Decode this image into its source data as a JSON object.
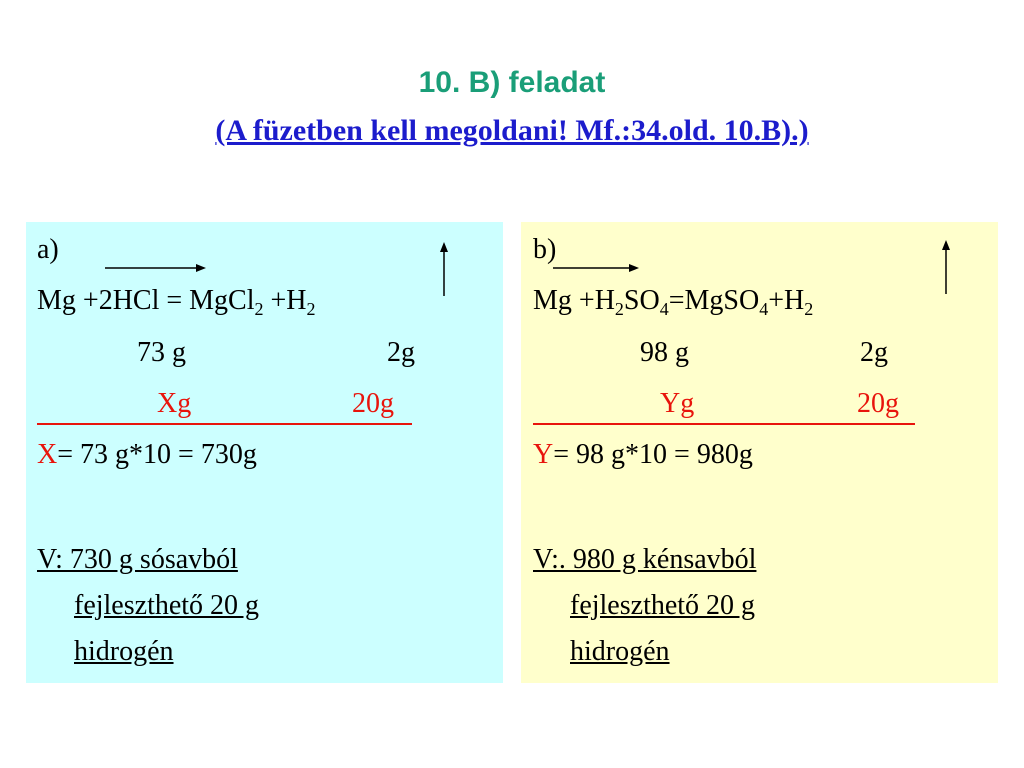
{
  "header": {
    "title": "10. B) feladat",
    "subtitle": "(A füzetben kell megoldani! Mf.:34.old. 10.B).)"
  },
  "panels": [
    {
      "label": "a)",
      "equation": [
        {
          "text": "Mg +2HCl = MgCl"
        },
        {
          "sub": "2"
        },
        {
          "text": " +H"
        },
        {
          "sub": "2"
        }
      ],
      "ratio": [
        "73 g",
        "2g"
      ],
      "unknown": [
        "Xg",
        "20g"
      ],
      "result": {
        "var": "X",
        "text": "= 73 g*10 = 730g"
      },
      "answer": [
        "V: 730 g sósavból",
        "fejleszthető 20 g",
        "hidrogén"
      ]
    },
    {
      "label": "b)",
      "equation": [
        {
          "text": "Mg +H"
        },
        {
          "sub": "2"
        },
        {
          "text": "SO"
        },
        {
          "sub": "4"
        },
        {
          "text": "=MgSO"
        },
        {
          "sub": "4"
        },
        {
          "text": "+H"
        },
        {
          "sub": "2"
        }
      ],
      "ratio": [
        "98 g",
        "2g"
      ],
      "unknown": [
        "Yg",
        "20g"
      ],
      "result": {
        "var": "Y",
        "text": "= 98 g*10 = 980g"
      },
      "answer": [
        "V:. 980 g kénsavból",
        "fejleszthető 20 g",
        "hidrogén"
      ]
    }
  ]
}
